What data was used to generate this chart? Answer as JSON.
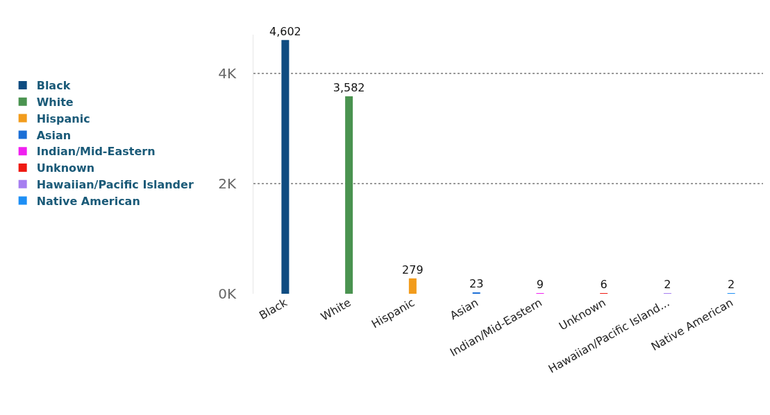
{
  "chart_data": {
    "type": "bar",
    "categories": [
      "Black",
      "White",
      "Hispanic",
      "Asian",
      "Indian/Mid-Eastern",
      "Unknown",
      "Hawaiian/Pacific Island...",
      "Native American"
    ],
    "series": [
      {
        "name": "Black",
        "color": "#0f4c81",
        "values": [
          4602,
          null,
          null,
          null,
          null,
          null,
          null,
          null
        ],
        "value_labels": [
          "4,602",
          null,
          null,
          null,
          null,
          null,
          null,
          null
        ]
      },
      {
        "name": "White",
        "color": "#4a9350",
        "values": [
          null,
          3582,
          null,
          null,
          null,
          null,
          null,
          null
        ],
        "value_labels": [
          null,
          "3,582",
          null,
          null,
          null,
          null,
          null,
          null
        ]
      },
      {
        "name": "Hispanic",
        "color": "#f29c1c",
        "values": [
          null,
          null,
          279,
          null,
          null,
          null,
          null,
          null
        ],
        "value_labels": [
          null,
          null,
          "279",
          null,
          null,
          null,
          null,
          null
        ]
      },
      {
        "name": "Asian",
        "color": "#1b6fd6",
        "values": [
          null,
          null,
          null,
          23,
          null,
          null,
          null,
          null
        ],
        "value_labels": [
          null,
          null,
          null,
          "23",
          null,
          null,
          null,
          null
        ]
      },
      {
        "name": "Indian/Mid-Eastern",
        "color": "#f020f0",
        "values": [
          null,
          null,
          null,
          null,
          9,
          null,
          null,
          null
        ],
        "value_labels": [
          null,
          null,
          null,
          null,
          "9",
          null,
          null,
          null
        ]
      },
      {
        "name": "Unknown",
        "color": "#ef1a12",
        "values": [
          null,
          null,
          null,
          null,
          null,
          6,
          null,
          null
        ],
        "value_labels": [
          null,
          null,
          null,
          null,
          null,
          "6",
          null,
          null
        ]
      },
      {
        "name": "Hawaiian/Pacific Islander",
        "color": "#a67ef0",
        "values": [
          null,
          null,
          null,
          null,
          null,
          null,
          2,
          null
        ],
        "value_labels": [
          null,
          null,
          null,
          null,
          null,
          null,
          "2",
          null
        ]
      },
      {
        "name": "Native American",
        "color": "#1e8ff5",
        "values": [
          null,
          null,
          null,
          null,
          null,
          null,
          null,
          2
        ],
        "value_labels": [
          null,
          null,
          null,
          null,
          null,
          null,
          null,
          "2"
        ]
      }
    ],
    "ylim": [
      0,
      4700
    ],
    "yticks": [
      {
        "value": 0,
        "label": "0K"
      },
      {
        "value": 2000,
        "label": "2K"
      },
      {
        "value": 4000,
        "label": "4K"
      }
    ],
    "grid": "y",
    "legend": "left"
  }
}
